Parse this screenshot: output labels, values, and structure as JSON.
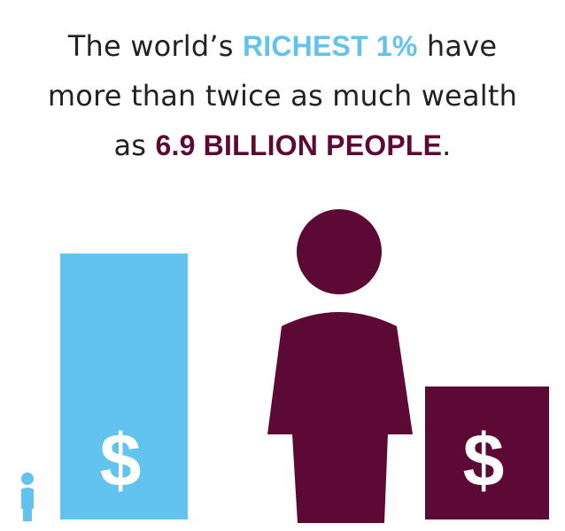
{
  "headline": {
    "line1_pre": "The world’s ",
    "line1_highlight": "RICHEST 1%",
    "line1_post": " have",
    "line2": "more than twice as much wealth",
    "line3_pre": "as ",
    "line3_highlight": "6.9 BILLION PEOPLE",
    "line3_post": "."
  },
  "colors": {
    "richest": "#62c3ee",
    "rest": "#5c0a35",
    "text": "#222222"
  },
  "icons": {
    "small_person": "person-icon",
    "large_person": "person-icon",
    "dollar": "dollar-sign-icon"
  },
  "chart_data": {
    "type": "bar",
    "categories": [
      "RICHEST 1%",
      "6.9 BILLION PEOPLE"
    ],
    "values": [
      2,
      1
    ],
    "people_scale": [
      1,
      69
    ],
    "dollar_symbol": "$"
  }
}
